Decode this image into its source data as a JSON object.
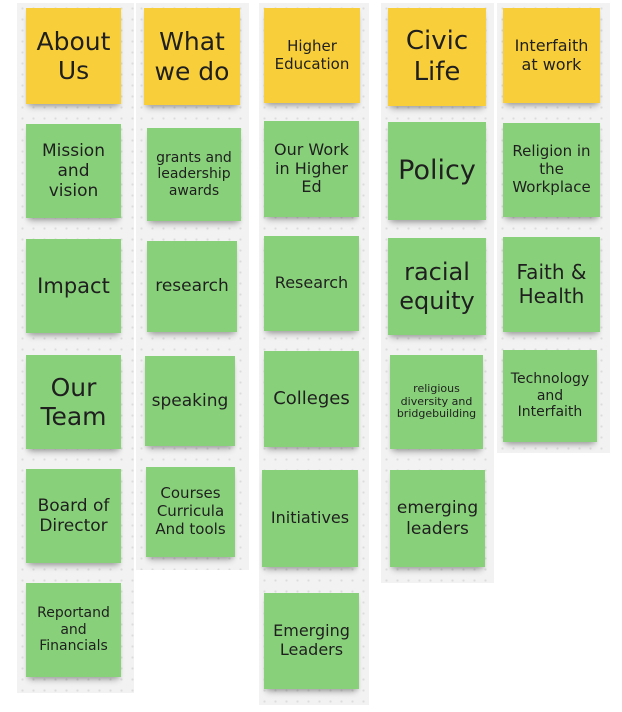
{
  "columns": [
    {
      "header": "About\nUs",
      "notes": [
        "Mission\nand\nvision",
        "Impact",
        "Our\nTeam",
        "Board of\nDirector",
        "Reportand\nand\nFinancials"
      ]
    },
    {
      "header": "What\nwe do",
      "notes": [
        "grants and\nleadership\nawards",
        "research",
        "speaking",
        "Courses\nCurricula\nAnd tools"
      ]
    },
    {
      "header": "Higher\nEducation",
      "notes": [
        "Our Work\nin Higher\nEd",
        "Research",
        "Colleges",
        "Initiatives",
        "Emerging\nLeaders"
      ]
    },
    {
      "header": "Civic\nLife",
      "notes": [
        "Policy",
        "racial\nequity",
        "religious\ndiversity and\nbridgebuilding",
        "emerging\nleaders"
      ]
    },
    {
      "header": "Interfaith\nat work",
      "notes": [
        "Religion in\nthe\nWorkplace",
        "Faith &\nHealth",
        "Technology\nand\nInterfaith"
      ]
    }
  ],
  "colors": {
    "header_note": "#f8cf3a",
    "item_note": "#88d17a",
    "board_background": "#f2f2f2"
  }
}
